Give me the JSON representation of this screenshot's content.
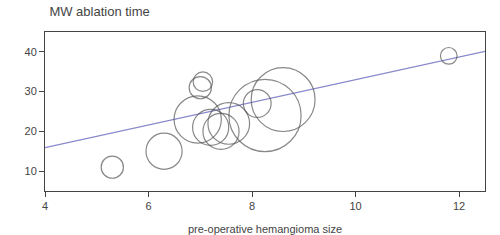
{
  "chart_data": {
    "type": "scatter",
    "title": "MW ablation time",
    "xlabel": "pre-operative hemangioma size",
    "xlim": [
      4,
      12.5
    ],
    "ylim": [
      5,
      45
    ],
    "xticks": [
      4,
      6,
      8,
      10,
      12
    ],
    "yticks": [
      10,
      20,
      30,
      40
    ],
    "grid": false,
    "series": [
      {
        "type": "line",
        "color": "#8888cc",
        "line_style": "solid",
        "x": [
          4.0,
          12.5
        ],
        "values": [
          15.9,
          40.125
        ]
      },
      {
        "type": "scatter",
        "color": "#555555",
        "marker": "circle-open",
        "x": [
          5.3,
          6.3,
          7.0,
          7.05,
          6.95,
          7.2,
          7.4,
          7.55,
          8.1,
          8.25,
          8.6,
          11.8
        ],
        "values": [
          11,
          15,
          31,
          32.5,
          23,
          21,
          20,
          22,
          27,
          24,
          28,
          39
        ],
        "sizes": [
          8,
          13,
          8,
          7,
          17,
          13,
          13,
          15,
          10,
          26,
          23,
          6
        ]
      }
    ]
  }
}
